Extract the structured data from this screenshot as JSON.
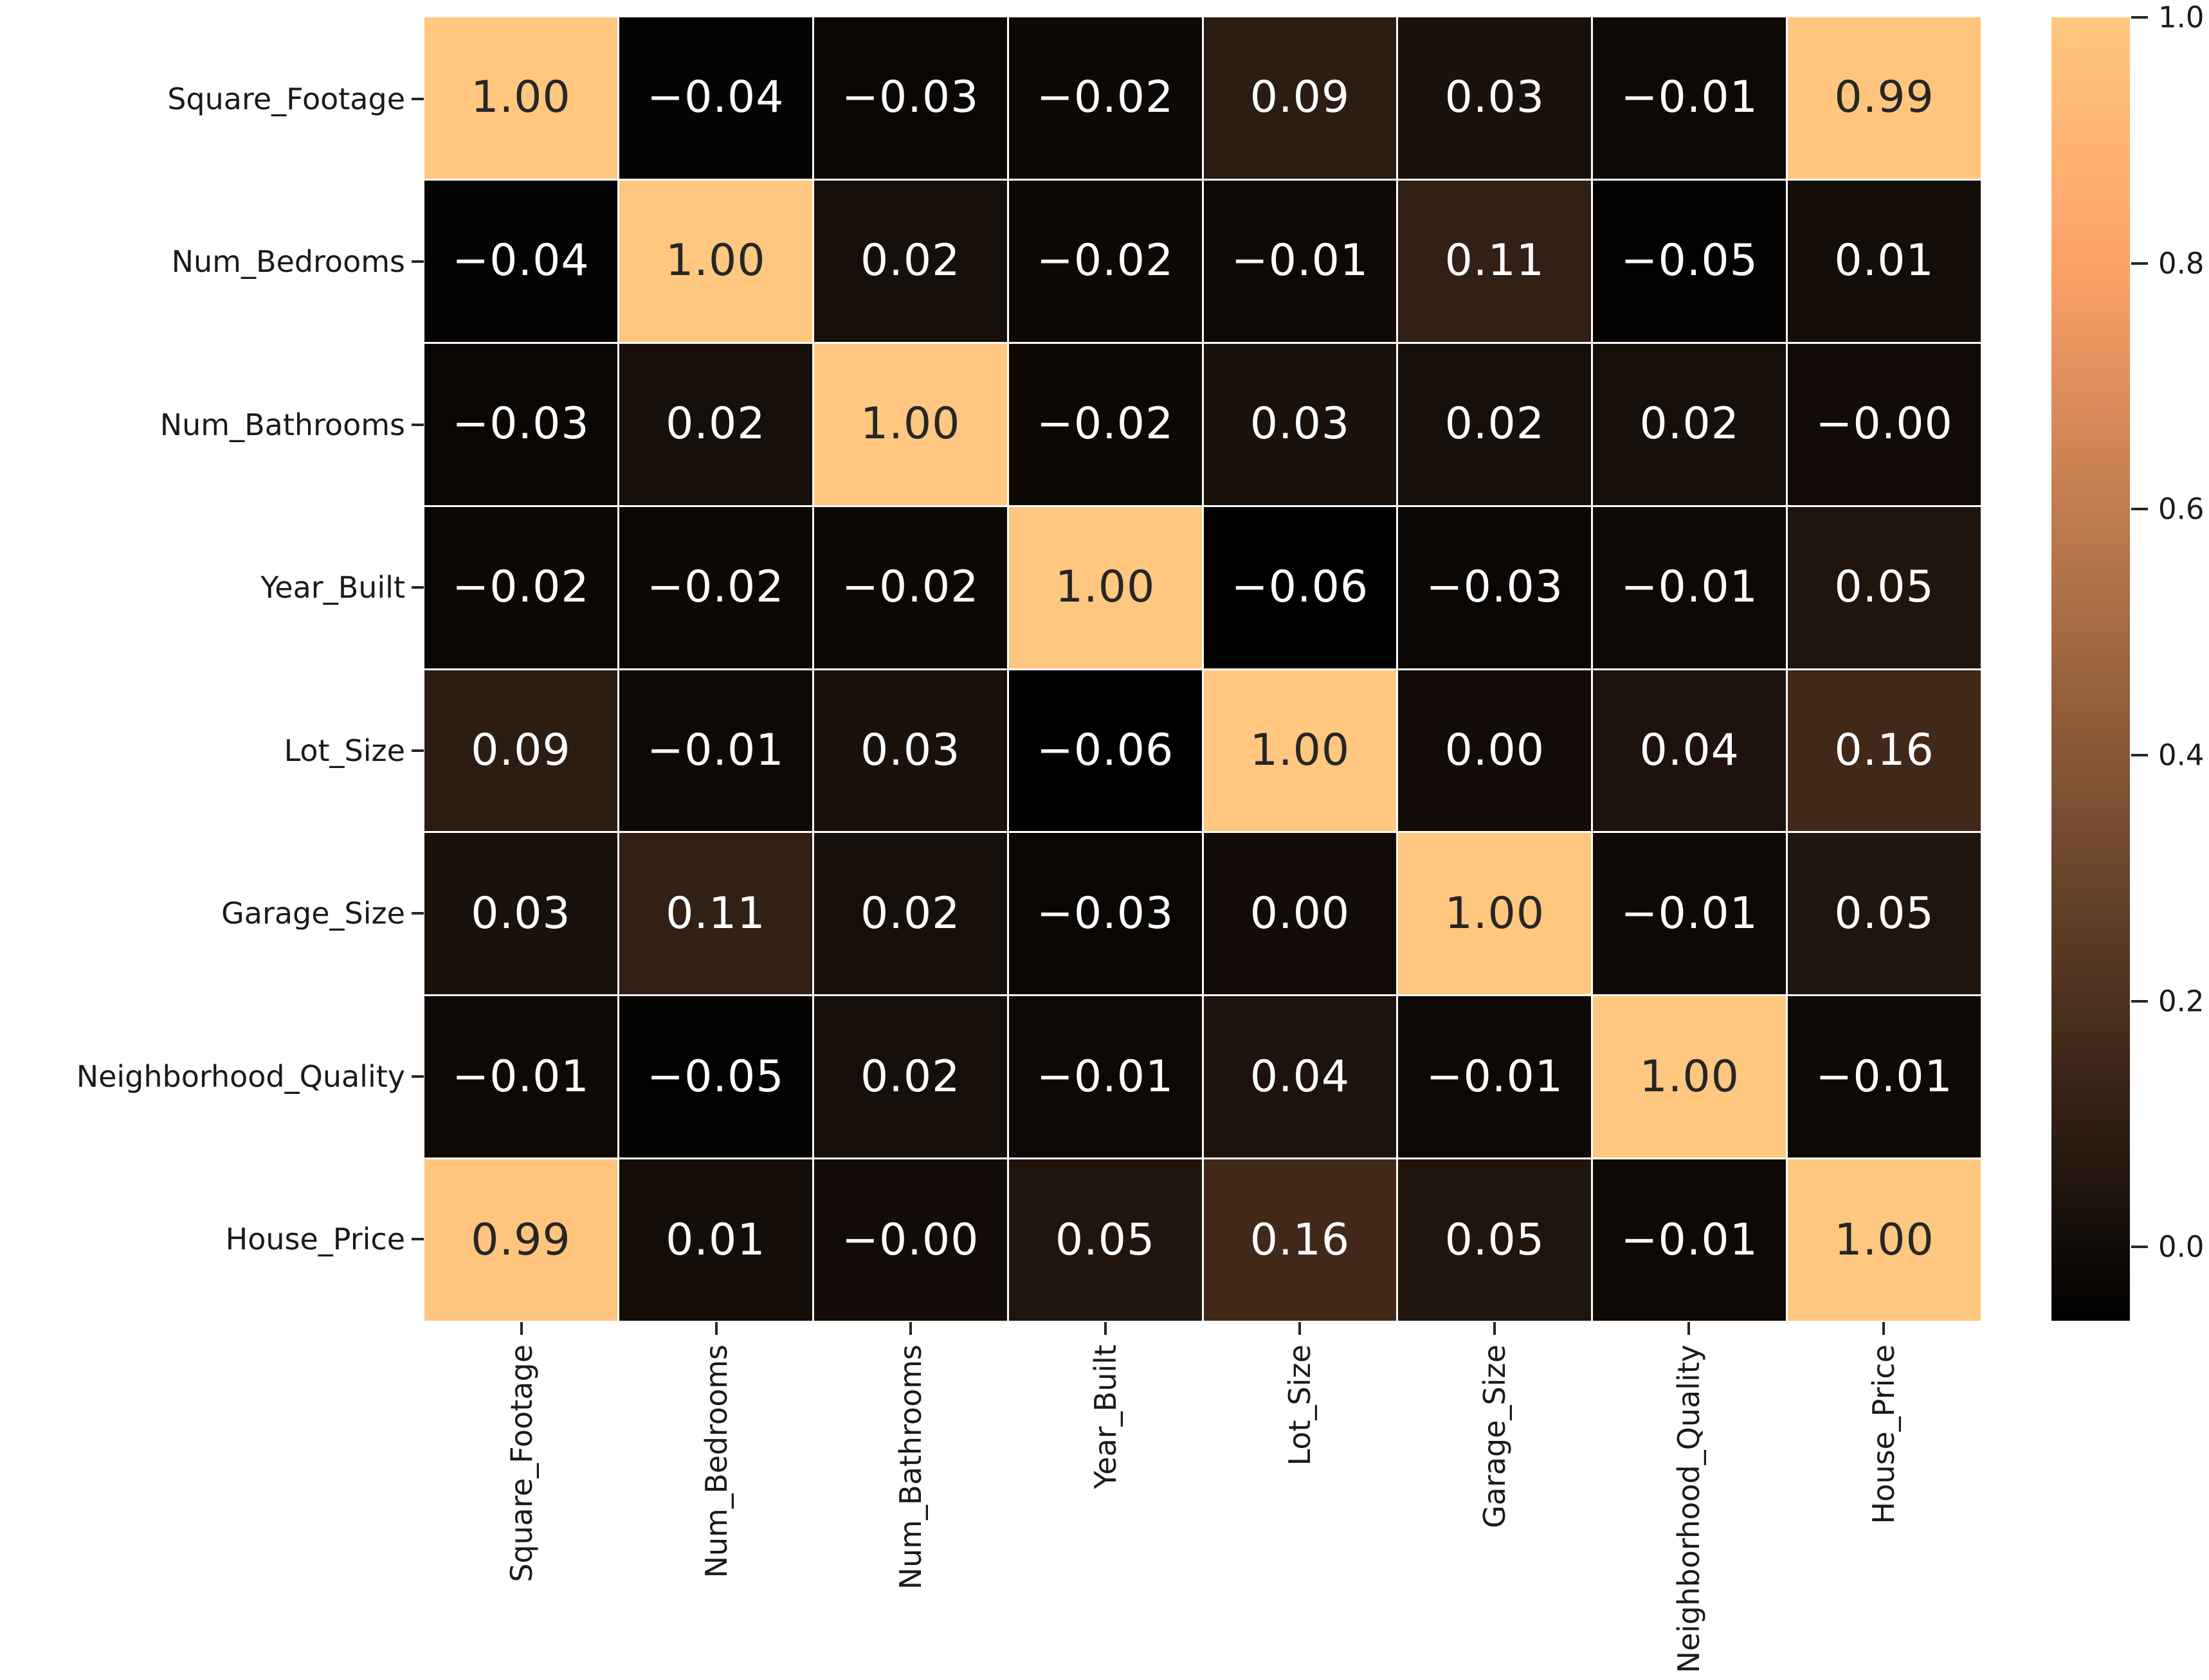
{
  "figure": {
    "background": "#ffffff",
    "axis_text_color": "#1a1a1a"
  },
  "chart_data": {
    "type": "heatmap",
    "title": "",
    "xlabel": "",
    "ylabel": "",
    "variables": [
      "Square_Footage",
      "Num_Bedrooms",
      "Num_Bathrooms",
      "Year_Built",
      "Lot_Size",
      "Garage_Size",
      "Neighborhood_Quality",
      "House_Price"
    ],
    "matrix": [
      [
        1.0,
        -0.04,
        -0.03,
        -0.02,
        0.09,
        0.03,
        -0.01,
        0.99
      ],
      [
        -0.04,
        1.0,
        0.02,
        -0.02,
        -0.01,
        0.11,
        -0.05,
        0.01
      ],
      [
        -0.03,
        0.02,
        1.0,
        -0.02,
        0.03,
        0.02,
        0.02,
        -0.0
      ],
      [
        -0.02,
        -0.02,
        -0.02,
        1.0,
        -0.06,
        -0.03,
        -0.01,
        0.05
      ],
      [
        0.09,
        -0.01,
        0.03,
        -0.06,
        1.0,
        0.0,
        0.04,
        0.16
      ],
      [
        0.03,
        0.11,
        0.02,
        -0.03,
        0.0,
        1.0,
        -0.01,
        0.05
      ],
      [
        -0.01,
        -0.05,
        0.02,
        -0.01,
        0.04,
        -0.01,
        1.0,
        -0.01
      ],
      [
        0.99,
        0.01,
        -0.0,
        0.05,
        0.16,
        0.05,
        -0.01,
        1.0
      ]
    ],
    "annotations": [
      [
        "1.00",
        "−0.04",
        "−0.03",
        "−0.02",
        "0.09",
        "0.03",
        "−0.01",
        "0.99"
      ],
      [
        "−0.04",
        "1.00",
        "0.02",
        "−0.02",
        "−0.01",
        "0.11",
        "−0.05",
        "0.01"
      ],
      [
        "−0.03",
        "0.02",
        "1.00",
        "−0.02",
        "0.03",
        "0.02",
        "0.02",
        "−0.00"
      ],
      [
        "−0.02",
        "−0.02",
        "−0.02",
        "1.00",
        "−0.06",
        "−0.03",
        "−0.01",
        "0.05"
      ],
      [
        "0.09",
        "−0.01",
        "0.03",
        "−0.06",
        "1.00",
        "0.00",
        "0.04",
        "0.16"
      ],
      [
        "0.03",
        "0.11",
        "0.02",
        "−0.03",
        "0.00",
        "1.00",
        "−0.01",
        "0.05"
      ],
      [
        "−0.01",
        "−0.05",
        "0.02",
        "−0.01",
        "0.04",
        "−0.01",
        "1.00",
        "−0.01"
      ],
      [
        "0.99",
        "0.01",
        "−0.00",
        "0.05",
        "0.16",
        "0.05",
        "−0.01",
        "1.00"
      ]
    ],
    "colormap": "copper",
    "vmin": -0.06,
    "vmax": 1.0,
    "grid_line_color": "#ffffff",
    "annot_color_on_dark": "#ffffff",
    "annot_color_on_light": "#262626",
    "colormap_top_hex": "#ffc77f",
    "colormap_bottom_hex": "#000000",
    "legend_position": "right",
    "colorbar_ticks": [
      {
        "value": 1.0,
        "label": "1.0"
      },
      {
        "value": 0.8,
        "label": "0.8"
      },
      {
        "value": 0.6,
        "label": "0.6"
      },
      {
        "value": 0.4,
        "label": "0.4"
      },
      {
        "value": 0.2,
        "label": "0.2"
      },
      {
        "value": 0.0,
        "label": "0.0"
      }
    ]
  }
}
